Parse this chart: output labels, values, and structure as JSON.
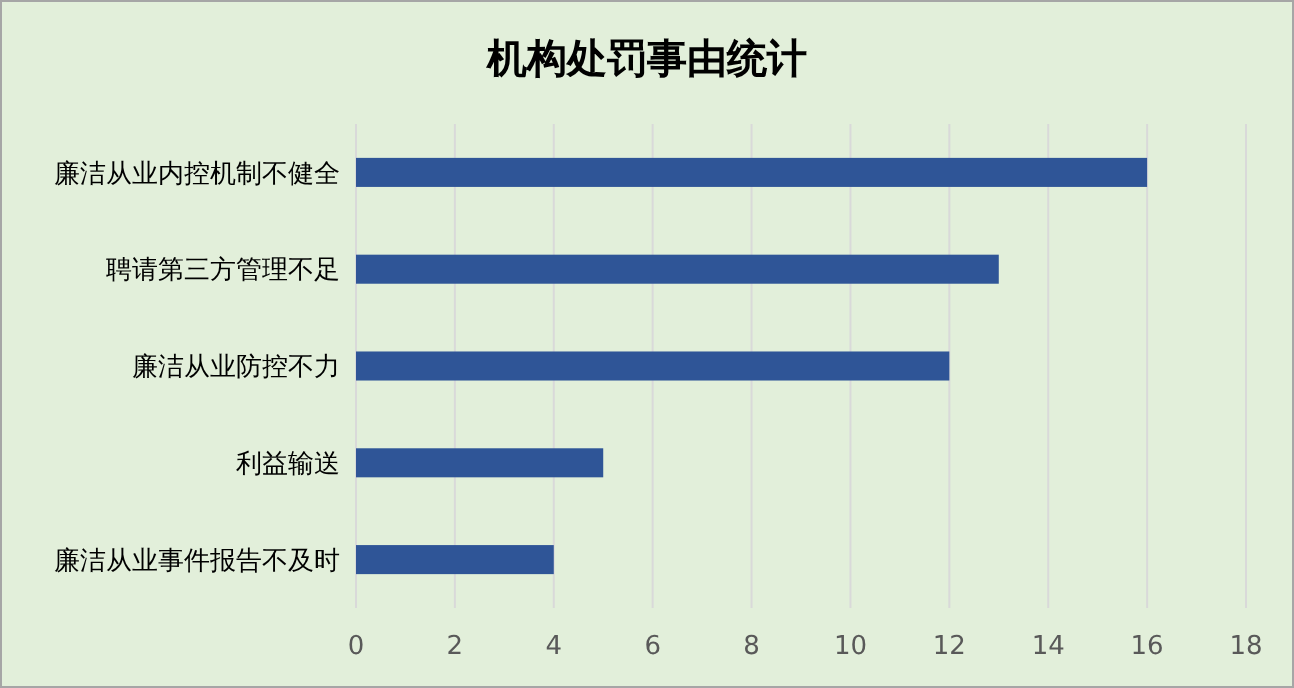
{
  "chart_data": {
    "type": "bar",
    "orientation": "horizontal",
    "title": "机构处罚事由统计",
    "categories": [
      "廉洁从业内控机制不健全",
      "聘请第三方管理不足",
      "廉洁从业防控不力",
      "利益输送",
      "廉洁从业事件报告不及时"
    ],
    "values": [
      16,
      13,
      12,
      5,
      4
    ],
    "color": "#2f5597",
    "xlim": [
      0,
      18
    ],
    "xticks": [
      0,
      2,
      4,
      6,
      8,
      10,
      12,
      14,
      16,
      18
    ],
    "grid": "x"
  }
}
